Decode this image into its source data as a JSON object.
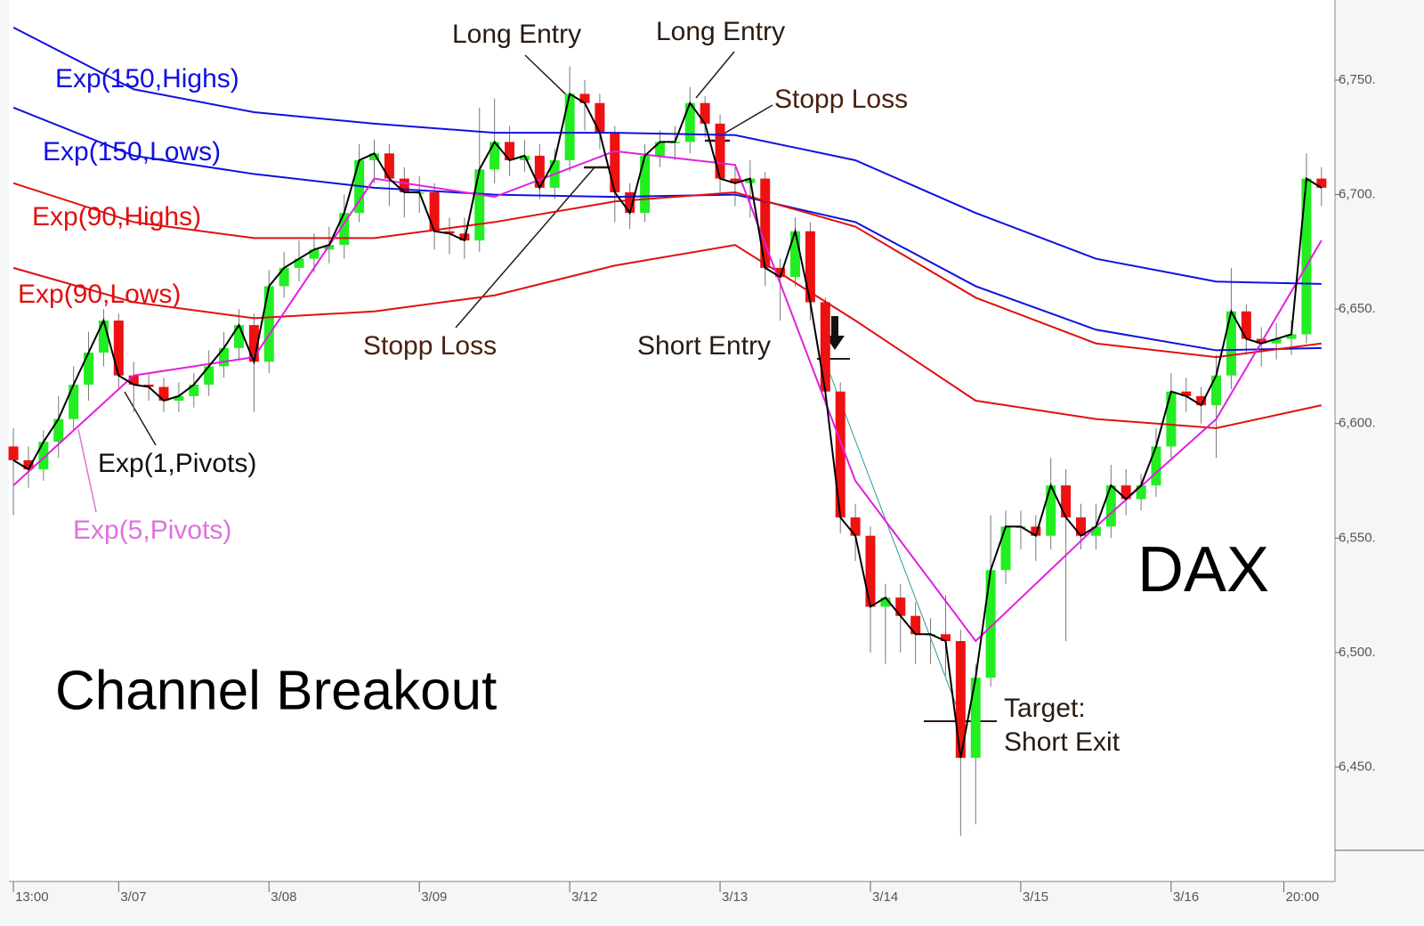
{
  "chart_data": {
    "type": "candlestick",
    "xlim": [
      -0.3,
      87.9
    ],
    "xticks": [
      {
        "value": 0,
        "label": "13:00"
      },
      {
        "value": 7,
        "label": "3/07"
      },
      {
        "value": 17,
        "label": "3/08"
      },
      {
        "value": 27,
        "label": "3/09"
      },
      {
        "value": 37,
        "label": "3/12"
      },
      {
        "value": 47,
        "label": "3/13"
      },
      {
        "value": 57,
        "label": "3/14"
      },
      {
        "value": 67,
        "label": "3/15"
      },
      {
        "value": 77,
        "label": "3/16"
      },
      {
        "value": 84.5,
        "label": "20:00"
      }
    ],
    "ylim": [
      6400,
      6785
    ],
    "yticks": [
      {
        "value": 6450,
        "label": "6,450."
      },
      {
        "value": 6500,
        "label": "6,500."
      },
      {
        "value": 6550,
        "label": "6,550."
      },
      {
        "value": 6600,
        "label": "6,600."
      },
      {
        "value": 6650,
        "label": "6,650."
      },
      {
        "value": 6700,
        "label": "6,700."
      },
      {
        "value": 6750,
        "label": "6,750."
      }
    ],
    "up_color": "#22ee22",
    "down_color": "#ee1111",
    "x": [
      0,
      1,
      2,
      3,
      4,
      5,
      6,
      7,
      8,
      9,
      10,
      11,
      12,
      13,
      14,
      15,
      16,
      17,
      18,
      19,
      20,
      21,
      22,
      23,
      24,
      25,
      26,
      27,
      28,
      29,
      30,
      31,
      32,
      33,
      34,
      35,
      36,
      37,
      38,
      39,
      40,
      41,
      42,
      43,
      44,
      45,
      46,
      47,
      48,
      49,
      50,
      51,
      52,
      53,
      54,
      55,
      56,
      57,
      58,
      59,
      60,
      61,
      62,
      63,
      64,
      65,
      66,
      67,
      68,
      69,
      70,
      71,
      72,
      73,
      74,
      75,
      76,
      77,
      78,
      79,
      80,
      81,
      82,
      83,
      84,
      85,
      86,
      87
    ],
    "open": [
      6590,
      6584,
      6580,
      6592,
      6602,
      6617,
      6631,
      6645,
      6621,
      6617,
      6616,
      6610,
      6612,
      6617,
      6625,
      6633,
      6643,
      6627,
      6660,
      6668,
      6672,
      6676,
      6678,
      6692,
      6715,
      6718,
      6707,
      6701,
      6701,
      6684,
      6683,
      6680,
      6711,
      6723,
      6715,
      6717,
      6703,
      6715,
      6744,
      6740,
      6727,
      6701,
      6692,
      6717,
      6723,
      6723,
      6740,
      6731,
      6707,
      6705,
      6707,
      6668,
      6664,
      6684,
      6653,
      6614,
      6559,
      6551,
      6520,
      6524,
      6516,
      6508,
      6508,
      6505,
      6454,
      6489,
      6536,
      6555,
      6555,
      6551,
      6573,
      6559,
      6551,
      6555,
      6573,
      6567,
      6573,
      6590,
      6614,
      6612,
      6608,
      6621,
      6649,
      6637,
      6635,
      6637,
      6639,
      6707
    ],
    "high": [
      6598,
      6590,
      6597,
      6612,
      6625,
      6640,
      6650,
      6648,
      6627,
      6622,
      6620,
      6618,
      6622,
      6632,
      6640,
      6650,
      6648,
      6667,
      6675,
      6680,
      6683,
      6686,
      6700,
      6722,
      6724,
      6722,
      6712,
      6708,
      6705,
      6690,
      6690,
      6738,
      6742,
      6730,
      6724,
      6722,
      6720,
      6756,
      6750,
      6744,
      6730,
      6705,
      6722,
      6728,
      6730,
      6747,
      6743,
      6735,
      6712,
      6715,
      6710,
      6672,
      6690,
      6688,
      6655,
      6618,
      6565,
      6555,
      6530,
      6530,
      6522,
      6515,
      6525,
      6510,
      6495,
      6560,
      6562,
      6562,
      6560,
      6585,
      6580,
      6565,
      6565,
      6582,
      6580,
      6578,
      6598,
      6622,
      6620,
      6616,
      6630,
      6668,
      6652,
      6642,
      6644,
      6645,
      6718,
      6712
    ],
    "low": [
      6560,
      6572,
      6575,
      6585,
      6597,
      6610,
      6625,
      6615,
      6605,
      6610,
      6605,
      6605,
      6607,
      6612,
      6620,
      6628,
      6605,
      6622,
      6655,
      6662,
      6666,
      6670,
      6672,
      6688,
      6705,
      6695,
      6690,
      6692,
      6676,
      6674,
      6672,
      6675,
      6705,
      6708,
      6710,
      6698,
      6698,
      6710,
      6728,
      6720,
      6688,
      6685,
      6688,
      6712,
      6715,
      6718,
      6725,
      6700,
      6695,
      6690,
      6660,
      6645,
      6660,
      6645,
      6608,
      6552,
      6540,
      6500,
      6495,
      6500,
      6495,
      6495,
      6490,
      6420,
      6425,
      6485,
      6530,
      6545,
      6540,
      6545,
      6505,
      6545,
      6545,
      6550,
      6560,
      6562,
      6568,
      6585,
      6605,
      6600,
      6585,
      6615,
      6630,
      6625,
      6628,
      6630,
      6635,
      6695
    ],
    "close": [
      6584,
      6580,
      6592,
      6602,
      6617,
      6631,
      6645,
      6621,
      6617,
      6616,
      6610,
      6612,
      6617,
      6625,
      6633,
      6643,
      6627,
      6660,
      6668,
      6672,
      6676,
      6678,
      6692,
      6715,
      6718,
      6707,
      6701,
      6701,
      6684,
      6683,
      6680,
      6711,
      6723,
      6715,
      6717,
      6703,
      6715,
      6744,
      6740,
      6727,
      6701,
      6692,
      6717,
      6723,
      6723,
      6740,
      6731,
      6707,
      6705,
      6707,
      6668,
      6664,
      6684,
      6653,
      6614,
      6559,
      6551,
      6520,
      6524,
      6516,
      6508,
      6508,
      6505,
      6454,
      6489,
      6536,
      6555,
      6555,
      6551,
      6573,
      6559,
      6551,
      6555,
      6573,
      6567,
      6573,
      6590,
      6614,
      6612,
      6608,
      6621,
      6649,
      6637,
      6635,
      6637,
      6639,
      6707,
      6703
    ],
    "close_line": {
      "name": "Exp(1,Pivots)",
      "color": "#000000"
    },
    "series": [
      {
        "name": "Exp(150,Highs)",
        "color": "#1010e0",
        "x": [
          0,
          8,
          16,
          24,
          32,
          40,
          48,
          56,
          64,
          72,
          80,
          87
        ],
        "values": [
          6773,
          6746,
          6736,
          6731,
          6727,
          6727,
          6726,
          6715,
          6692,
          6672,
          6662,
          6661
        ]
      },
      {
        "name": "Exp(150,Lows)",
        "color": "#1010e0",
        "x": [
          0,
          8,
          16,
          24,
          32,
          40,
          48,
          56,
          64,
          72,
          80,
          87
        ],
        "values": [
          6738,
          6717,
          6709,
          6703,
          6700,
          6699,
          6700,
          6688,
          6660,
          6641,
          6632,
          6633
        ]
      },
      {
        "name": "Exp(90,Highs)",
        "color": "#e01010",
        "x": [
          0,
          8,
          16,
          24,
          32,
          40,
          48,
          56,
          64,
          72,
          80,
          87
        ],
        "values": [
          6705,
          6688,
          6681,
          6681,
          6688,
          6697,
          6701,
          6686,
          6655,
          6635,
          6629,
          6635
        ]
      },
      {
        "name": "Exp(90,Lows)",
        "color": "#e01010",
        "x": [
          0,
          8,
          16,
          24,
          32,
          40,
          48,
          56,
          64,
          72,
          80,
          87
        ],
        "values": [
          6668,
          6653,
          6646,
          6649,
          6656,
          6669,
          6678,
          6645,
          6610,
          6602,
          6598,
          6608
        ]
      },
      {
        "name": "Exp(5,Pivots)",
        "color": "#e020e0",
        "x": [
          0,
          8,
          16,
          24,
          32,
          40,
          48,
          56,
          64,
          72,
          80,
          87
        ],
        "values": [
          6573,
          6621,
          6629,
          6707,
          6699,
          6719,
          6713,
          6575,
          6505,
          6555,
          6602,
          6680
        ]
      }
    ],
    "annotations": [
      "Long Entry",
      "Long Entry",
      "Stopp Loss",
      "Stopp Loss",
      "Short Entry",
      "Target:",
      "Short Exit",
      "Channel Breakout",
      "DAX"
    ]
  }
}
